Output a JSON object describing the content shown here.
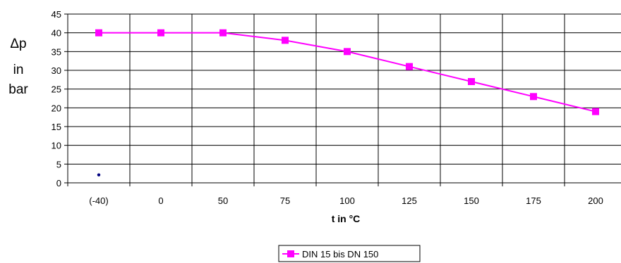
{
  "chart_data": {
    "type": "line",
    "categories": [
      "(-40)",
      "0",
      "50",
      "75",
      "100",
      "125",
      "150",
      "175",
      "200"
    ],
    "series": [
      {
        "name": "DIN 15 bis DN 150",
        "values": [
          40,
          40,
          40,
          38,
          35,
          31,
          27,
          23,
          19
        ],
        "color": "#ff00ff",
        "marker": "square"
      }
    ],
    "extra_points": [
      {
        "category": "(-40)",
        "value": 1,
        "color": "#000080"
      }
    ],
    "ylim": [
      0,
      45
    ],
    "yticks": [
      "0",
      "5",
      "10",
      "15",
      "20",
      "25",
      "30",
      "35",
      "40",
      "45"
    ],
    "ylabel_lines": [
      "Δp",
      "in",
      "bar"
    ],
    "xlabel": "t in °C",
    "grid": true,
    "legend": "bottom-center"
  }
}
